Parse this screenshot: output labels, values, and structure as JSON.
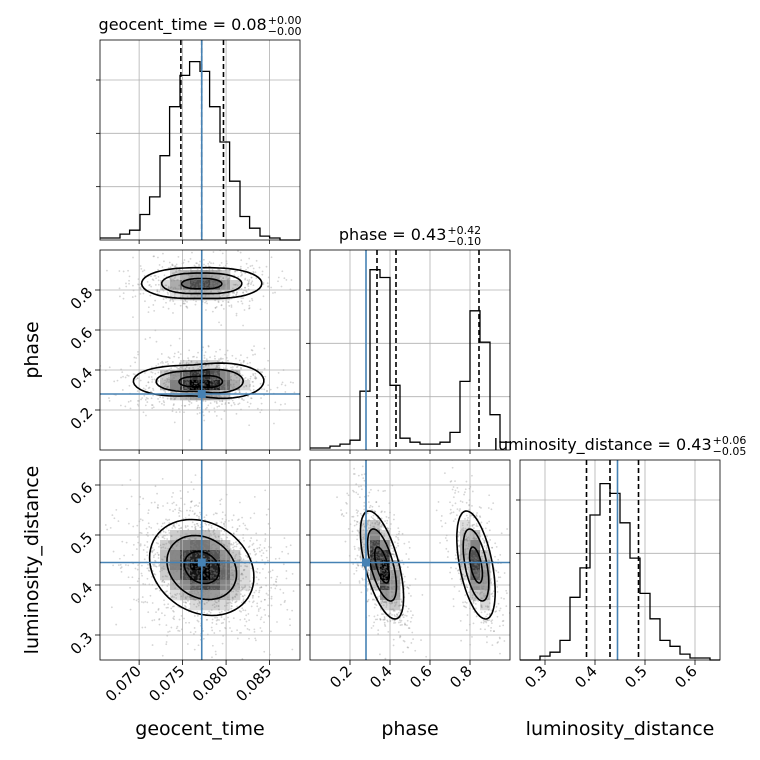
{
  "chart_data": {
    "type": "corner",
    "parameters": [
      "geocent_time",
      "phase",
      "luminosity_distance"
    ],
    "truths": {
      "geocent_time": 0.0772,
      "phase": 0.28,
      "luminosity_distance": 0.445
    },
    "titles": [
      {
        "param": "geocent_time",
        "text": "geocent_time = 0.08",
        "sup": "+0.00",
        "sub": "−0.00"
      },
      {
        "param": "phase",
        "text": "phase = 0.43",
        "sup": "+0.42",
        "sub": "−0.10"
      },
      {
        "param": "luminosity_distance",
        "text": "luminosity_distance = 0.43",
        "sup": "+0.06",
        "sub": "−0.05"
      }
    ],
    "quantiles": {
      "geocent_time": [
        0.0748,
        0.0772,
        0.0797
      ],
      "phase": [
        0.335,
        0.43,
        0.845
      ],
      "luminosity_distance": [
        0.383,
        0.43,
        0.487
      ]
    },
    "ranges": {
      "geocent_time": [
        0.0655,
        0.0885
      ],
      "phase": [
        0.0,
        1.0
      ],
      "luminosity_distance": [
        0.25,
        0.65
      ]
    },
    "ticks": {
      "geocent_time": {
        "values": [
          0.07,
          0.075,
          0.08,
          0.085
        ],
        "labels": [
          "0.070",
          "0.075",
          "0.080",
          "0.085"
        ]
      },
      "phase": {
        "values": [
          0.2,
          0.4,
          0.6,
          0.8
        ],
        "labels": [
          "0.2",
          "0.4",
          "0.6",
          "0.8"
        ]
      },
      "luminosity_distance": {
        "values": [
          0.3,
          0.4,
          0.5,
          0.6
        ],
        "labels": [
          "0.3",
          "0.4",
          "0.5",
          "0.6"
        ]
      }
    },
    "histograms": {
      "geocent_time": {
        "edges": [
          0.0655,
          0.0666,
          0.0678,
          0.0689,
          0.0701,
          0.0712,
          0.0724,
          0.0735,
          0.0747,
          0.0758,
          0.077,
          0.0781,
          0.0793,
          0.0804,
          0.0816,
          0.0827,
          0.0839,
          0.085,
          0.0862,
          0.0873,
          0.0885
        ],
        "counts": [
          0.01,
          0.01,
          0.03,
          0.05,
          0.13,
          0.22,
          0.43,
          0.68,
          0.84,
          0.91,
          0.86,
          0.68,
          0.5,
          0.3,
          0.12,
          0.06,
          0.02,
          0.01,
          0.0,
          0.0
        ]
      },
      "phase": {
        "edges": [
          0.0,
          0.05,
          0.1,
          0.15,
          0.2,
          0.25,
          0.3,
          0.35,
          0.4,
          0.45,
          0.5,
          0.55,
          0.6,
          0.65,
          0.7,
          0.75,
          0.8,
          0.85,
          0.9,
          0.95,
          1.0
        ],
        "counts": [
          0.01,
          0.01,
          0.02,
          0.03,
          0.05,
          0.3,
          0.92,
          0.88,
          0.33,
          0.06,
          0.04,
          0.03,
          0.03,
          0.04,
          0.09,
          0.35,
          0.71,
          0.55,
          0.18,
          0.04
        ]
      },
      "luminosity_distance": {
        "edges": [
          0.25,
          0.27,
          0.29,
          0.31,
          0.33,
          0.35,
          0.37,
          0.39,
          0.41,
          0.43,
          0.45,
          0.47,
          0.49,
          0.51,
          0.53,
          0.55,
          0.57,
          0.59,
          0.61,
          0.63,
          0.65
        ],
        "counts": [
          0.0,
          0.0,
          0.02,
          0.04,
          0.1,
          0.32,
          0.47,
          0.74,
          0.9,
          0.85,
          0.7,
          0.52,
          0.34,
          0.21,
          0.1,
          0.07,
          0.03,
          0.01,
          0.01,
          0.0
        ]
      }
    },
    "contour_panels": [
      {
        "x": "geocent_time",
        "y": "phase",
        "modes": [
          {
            "cx": 0.0772,
            "cy": 0.34,
            "sx": 0.0025,
            "sy": 0.045,
            "rho": 0.0,
            "ex": [
              0.25,
              0.0
            ],
            "ey": [
              0.15,
              -0.2
            ],
            "levels": [
              0.8,
              1.6,
              2.4
            ]
          },
          {
            "cx": 0.0772,
            "cy": 0.83,
            "sx": 0.0024,
            "sy": 0.04,
            "rho": 0.0,
            "ex": [
              0.2,
              0.0
            ],
            "ey": [
              0.1,
              0.0
            ],
            "levels": [
              0.8,
              1.6,
              2.4
            ]
          }
        ],
        "scatter_n": 1500,
        "mode_weights": [
          0.6,
          0.4
        ]
      },
      {
        "x": "geocent_time",
        "y": "luminosity_distance",
        "modes": [
          {
            "cx": 0.0772,
            "cy": 0.435,
            "sx": 0.0025,
            "sy": 0.04,
            "rho": -0.2,
            "ex": [
              0.0,
              0.1
            ],
            "ey": [
              0.0,
              0.0
            ],
            "levels": [
              0.8,
              1.6,
              2.4
            ]
          }
        ],
        "scatter_n": 1500,
        "mode_weights": [
          1.0
        ]
      },
      {
        "x": "phase",
        "y": "luminosity_distance",
        "modes": [
          {
            "cx": 0.36,
            "cy": 0.44,
            "sx": 0.045,
            "sy": 0.045,
            "rho": -0.6,
            "ex": [
              0.0,
              0.0
            ],
            "ey": [
              0.0,
              0.0
            ],
            "levels": [
              0.8,
              1.6,
              2.4
            ]
          },
          {
            "cx": 0.83,
            "cy": 0.44,
            "sx": 0.04,
            "sy": 0.045,
            "rho": -0.5,
            "ex": [
              0.0,
              0.0
            ],
            "ey": [
              0.0,
              0.0
            ],
            "levels": [
              0.8,
              1.6,
              2.4
            ]
          }
        ],
        "scatter_n": 1500,
        "mode_weights": [
          0.6,
          0.4
        ]
      }
    ],
    "colors": {
      "truth": "#4682b4",
      "line": "#000000",
      "grid": "#b0b0b0",
      "scatter": "#888888"
    }
  }
}
